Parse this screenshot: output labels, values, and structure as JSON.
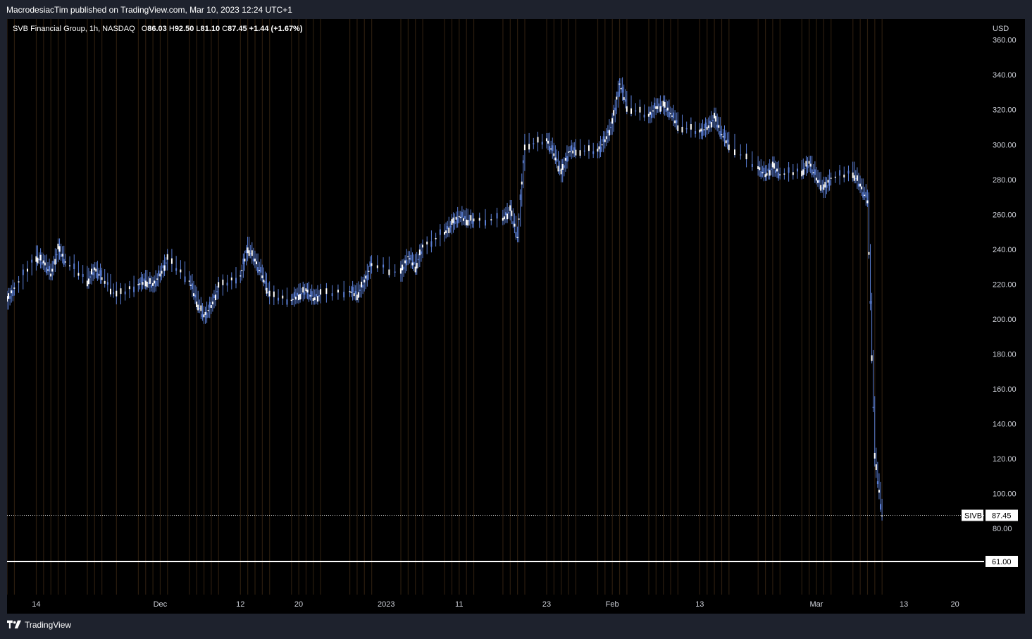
{
  "header": {
    "publish_line": "MacrodesiacTim published on TradingView.com, Mar 10, 2023 12:24 UTC+1"
  },
  "legend": {
    "symbol": "SVB Financial Group, 1h, NASDAQ",
    "o_label": "O",
    "o_value": "86.03",
    "h_label": "H",
    "h_value": "92.50",
    "l_label": "L",
    "l_value": "81.10",
    "c_label": "C",
    "c_value": "87.45",
    "change": "+1.44 (+1.67%)"
  },
  "brand": {
    "name": "TradingView",
    "logo_icon": "tradingview-logo-icon"
  },
  "colors": {
    "background": "#000000",
    "frame": "#1e222d",
    "candle": "#5b7fd6",
    "session_stripe": "#2a1c0e",
    "text": "#d1d4dc",
    "white": "#ffffff"
  },
  "chart_data": {
    "type": "candlestick",
    "symbol": "SIVB",
    "currency": "USD",
    "ylim": [
      42,
      372
    ],
    "y_ticks": [
      "360.00",
      "340.00",
      "320.00",
      "300.00",
      "280.00",
      "260.00",
      "240.00",
      "220.00",
      "200.00",
      "180.00",
      "160.00",
      "140.00",
      "120.00",
      "100.00",
      "80.00"
    ],
    "y_tick_values": [
      360,
      340,
      320,
      300,
      280,
      260,
      240,
      220,
      200,
      180,
      160,
      140,
      120,
      100,
      80
    ],
    "x_ticks": [
      "14",
      "Dec",
      "12",
      "20",
      "2023",
      "11",
      "23",
      "Feb",
      "13",
      "Mar",
      "13",
      "20"
    ],
    "x_tick_dates": [
      "2022-11-14",
      "2022-12-01",
      "2022-12-12",
      "2022-12-20",
      "2023-01-01",
      "2023-01-11",
      "2023-01-23",
      "2023-02-01",
      "2023-02-13",
      "2023-03-01",
      "2023-03-13",
      "2023-03-20"
    ],
    "x_range": [
      "2022-11-10",
      "2023-03-24"
    ],
    "series": [
      {
        "values_by_date": [
          {
            "date": "2022-11-10",
            "close": 210
          },
          {
            "date": "2022-11-11",
            "close": 218
          },
          {
            "date": "2022-11-14",
            "close": 236
          },
          {
            "date": "2022-11-15",
            "close": 232
          },
          {
            "date": "2022-11-16",
            "close": 226
          },
          {
            "date": "2022-11-17",
            "close": 240
          },
          {
            "date": "2022-11-18",
            "close": 233
          },
          {
            "date": "2022-11-21",
            "close": 222
          },
          {
            "date": "2022-11-22",
            "close": 228
          },
          {
            "date": "2022-11-23",
            "close": 224
          },
          {
            "date": "2022-11-25",
            "close": 213
          },
          {
            "date": "2022-11-28",
            "close": 220
          },
          {
            "date": "2022-11-29",
            "close": 222
          },
          {
            "date": "2022-11-30",
            "close": 219
          },
          {
            "date": "2022-12-01",
            "close": 226
          },
          {
            "date": "2022-12-02",
            "close": 234
          },
          {
            "date": "2022-12-05",
            "close": 222
          },
          {
            "date": "2022-12-06",
            "close": 210
          },
          {
            "date": "2022-12-07",
            "close": 201
          },
          {
            "date": "2022-12-08",
            "close": 208
          },
          {
            "date": "2022-12-09",
            "close": 218
          },
          {
            "date": "2022-12-12",
            "close": 225
          },
          {
            "date": "2022-12-13",
            "close": 241
          },
          {
            "date": "2022-12-14",
            "close": 233
          },
          {
            "date": "2022-12-15",
            "close": 225
          },
          {
            "date": "2022-12-16",
            "close": 213
          },
          {
            "date": "2022-12-19",
            "close": 211
          },
          {
            "date": "2022-12-20",
            "close": 214
          },
          {
            "date": "2022-12-21",
            "close": 216
          },
          {
            "date": "2022-12-22",
            "close": 212
          },
          {
            "date": "2022-12-23",
            "close": 214
          },
          {
            "date": "2022-12-27",
            "close": 216
          },
          {
            "date": "2022-12-28",
            "close": 214
          },
          {
            "date": "2022-12-29",
            "close": 221
          },
          {
            "date": "2022-12-30",
            "close": 232
          },
          {
            "date": "2023-01-03",
            "close": 226
          },
          {
            "date": "2023-01-04",
            "close": 236
          },
          {
            "date": "2023-01-05",
            "close": 230
          },
          {
            "date": "2023-01-06",
            "close": 241
          },
          {
            "date": "2023-01-09",
            "close": 250
          },
          {
            "date": "2023-01-10",
            "close": 254
          },
          {
            "date": "2023-01-11",
            "close": 259
          },
          {
            "date": "2023-01-12",
            "close": 257
          },
          {
            "date": "2023-01-13",
            "close": 256
          },
          {
            "date": "2023-01-17",
            "close": 258
          },
          {
            "date": "2023-01-18",
            "close": 262
          },
          {
            "date": "2023-01-19",
            "close": 247
          },
          {
            "date": "2023-01-20",
            "close": 300
          },
          {
            "date": "2023-01-23",
            "close": 302
          },
          {
            "date": "2023-01-24",
            "close": 295
          },
          {
            "date": "2023-01-25",
            "close": 283
          },
          {
            "date": "2023-01-26",
            "close": 296
          },
          {
            "date": "2023-01-27",
            "close": 297
          },
          {
            "date": "2023-01-30",
            "close": 296
          },
          {
            "date": "2023-01-31",
            "close": 303
          },
          {
            "date": "2023-02-01",
            "close": 312
          },
          {
            "date": "2023-02-02",
            "close": 335
          },
          {
            "date": "2023-02-03",
            "close": 322
          },
          {
            "date": "2023-02-06",
            "close": 316
          },
          {
            "date": "2023-02-07",
            "close": 322
          },
          {
            "date": "2023-02-08",
            "close": 322
          },
          {
            "date": "2023-02-09",
            "close": 318
          },
          {
            "date": "2023-02-10",
            "close": 311
          },
          {
            "date": "2023-02-13",
            "close": 307
          },
          {
            "date": "2023-02-14",
            "close": 310
          },
          {
            "date": "2023-02-15",
            "close": 315
          },
          {
            "date": "2023-02-16",
            "close": 306
          },
          {
            "date": "2023-02-17",
            "close": 300
          },
          {
            "date": "2023-02-21",
            "close": 286
          },
          {
            "date": "2023-02-22",
            "close": 283
          },
          {
            "date": "2023-02-23",
            "close": 287
          },
          {
            "date": "2023-02-24",
            "close": 283
          },
          {
            "date": "2023-02-27",
            "close": 285
          },
          {
            "date": "2023-02-28",
            "close": 289
          },
          {
            "date": "2023-03-01",
            "close": 281
          },
          {
            "date": "2023-03-02",
            "close": 274
          },
          {
            "date": "2023-03-03",
            "close": 281
          },
          {
            "date": "2023-03-06",
            "close": 284
          },
          {
            "date": "2023-03-07",
            "close": 276
          },
          {
            "date": "2023-03-08",
            "close": 268
          },
          {
            "date": "2023-03-09",
            "close": 120
          },
          {
            "date": "2023-03-10",
            "close": 87.45
          }
        ]
      }
    ],
    "last_price_label": "SIVB",
    "last_price": "87.45",
    "last_price_value": 87.45,
    "horizontal_line_label": "61.00",
    "horizontal_line_value": 61,
    "grid": false
  }
}
